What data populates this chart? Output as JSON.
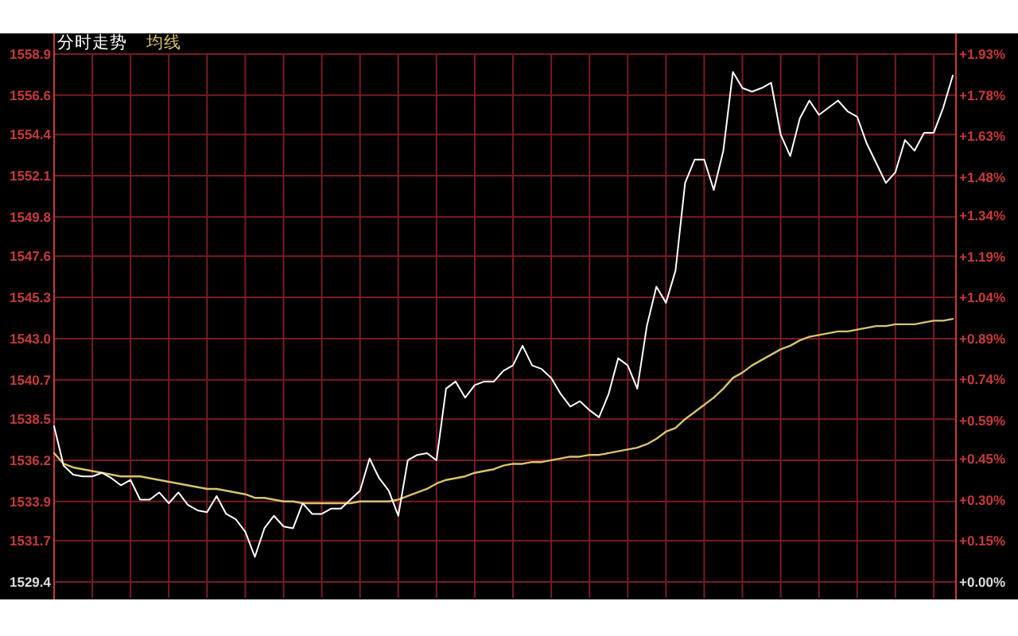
{
  "chart_data": {
    "type": "line",
    "categories": [
      null,
      null,
      null,
      null,
      null,
      null,
      null,
      null,
      null,
      null,
      null,
      null,
      null,
      null,
      null,
      null,
      null,
      null,
      null,
      null,
      null,
      null,
      null,
      null,
      null,
      null,
      null,
      null,
      null,
      null,
      null,
      null,
      null,
      null,
      null,
      null,
      null,
      null,
      null,
      null,
      null,
      null,
      null,
      null,
      null,
      null,
      null,
      null,
      null,
      null,
      null,
      null,
      null,
      null,
      null,
      null,
      null,
      null,
      null,
      null,
      null,
      null,
      null,
      null,
      null,
      null,
      null,
      null,
      null,
      null,
      null,
      null,
      null,
      null,
      null,
      null,
      null,
      null,
      null,
      null,
      null,
      null,
      null,
      null,
      null,
      null,
      null,
      null,
      null,
      null,
      null,
      null,
      null,
      null,
      null
    ],
    "series": [
      {
        "name": "分时走势",
        "color": "#ffffff",
        "values": [
          1538.1,
          1535.9,
          1535.4,
          1535.3,
          1535.3,
          1535.5,
          1535.2,
          1534.8,
          1535.1,
          1534.0,
          1534.0,
          1534.4,
          1533.8,
          1534.4,
          1533.7,
          1533.4,
          1533.3,
          1534.2,
          1533.2,
          1532.9,
          1532.2,
          1530.8,
          1532.4,
          1533.1,
          1532.5,
          1532.4,
          1533.8,
          1533.2,
          1533.2,
          1533.5,
          1533.5,
          1534.0,
          1534.5,
          1536.3,
          1535.2,
          1534.5,
          1533.1,
          1536.2,
          1536.5,
          1536.6,
          1536.2,
          1540.2,
          1540.6,
          1539.7,
          1540.4,
          1540.6,
          1540.6,
          1541.2,
          1541.5,
          1542.6,
          1541.5,
          1541.3,
          1540.8,
          1539.9,
          1539.2,
          1539.5,
          1539.0,
          1538.6,
          1539.9,
          1541.9,
          1541.5,
          1540.2,
          1543.7,
          1545.9,
          1545.0,
          1546.8,
          1551.7,
          1553.0,
          1553.0,
          1551.3,
          1553.5,
          1557.9,
          1557.0,
          1556.8,
          1557.0,
          1557.3,
          1554.4,
          1553.2,
          1555.3,
          1556.3,
          1555.5,
          1555.9,
          1556.3,
          1555.7,
          1555.4,
          1553.9,
          1552.8,
          1551.7,
          1552.3,
          1554.1,
          1553.5,
          1554.5,
          1554.5,
          1555.9,
          1557.7
        ]
      },
      {
        "name": "均线",
        "color": "#d8c46c",
        "values": [
          1536.6,
          1536.0,
          1535.8,
          1535.7,
          1535.6,
          1535.5,
          1535.4,
          1535.3,
          1535.3,
          1535.3,
          1535.2,
          1535.1,
          1535.0,
          1534.9,
          1534.8,
          1534.7,
          1534.6,
          1534.6,
          1534.5,
          1534.4,
          1534.3,
          1534.1,
          1534.1,
          1534.0,
          1533.9,
          1533.9,
          1533.8,
          1533.8,
          1533.8,
          1533.8,
          1533.8,
          1533.8,
          1533.9,
          1533.9,
          1533.9,
          1533.9,
          1534.0,
          1534.2,
          1534.4,
          1534.6,
          1534.9,
          1535.1,
          1535.2,
          1535.3,
          1535.5,
          1535.6,
          1535.7,
          1535.9,
          1536.0,
          1536.0,
          1536.1,
          1536.1,
          1536.2,
          1536.3,
          1536.4,
          1536.4,
          1536.5,
          1536.5,
          1536.6,
          1536.7,
          1536.8,
          1536.9,
          1537.1,
          1537.4,
          1537.8,
          1538.0,
          1538.5,
          1538.9,
          1539.3,
          1539.7,
          1540.2,
          1540.8,
          1541.1,
          1541.5,
          1541.8,
          1542.1,
          1542.4,
          1542.6,
          1542.9,
          1543.1,
          1543.2,
          1543.3,
          1543.4,
          1543.4,
          1543.5,
          1543.6,
          1543.7,
          1543.7,
          1543.8,
          1543.8,
          1543.8,
          1543.9,
          1544.0,
          1544.0,
          1544.1
        ]
      }
    ],
    "ylim": [
      1529.4,
      1558.9
    ],
    "yticks": [
      1529.4,
      1531.7,
      1533.9,
      1536.2,
      1538.5,
      1540.7,
      {
        "value": 1543.0,
        "label": "1543.0"
      },
      1545.3,
      1547.6,
      1549.8,
      1552.1,
      1554.4,
      1556.6,
      1558.9
    ],
    "y2lim": [
      0,
      1.93
    ],
    "y2ticks": [
      {
        "value": 0,
        "label": "+0.00%"
      },
      {
        "value": 0.15,
        "label": "+0.15%"
      },
      {
        "value": 0.3,
        "label": "+0.30%"
      },
      {
        "value": 0.45,
        "label": "+0.45%"
      },
      {
        "value": 0.59,
        "label": "+0.59%"
      },
      {
        "value": 0.74,
        "label": "+0.74%"
      },
      {
        "value": 0.89,
        "label": "+0.89%"
      },
      {
        "value": 1.04,
        "label": "+1.04%"
      },
      {
        "value": 1.19,
        "label": "+1.19%"
      },
      {
        "value": 1.34,
        "label": "+1.34%"
      },
      {
        "value": 1.48,
        "label": "+1.48%"
      },
      {
        "value": 1.63,
        "label": "+1.63%"
      },
      {
        "value": 1.78,
        "label": "+1.78%"
      },
      {
        "value": 1.93,
        "label": "+1.93%"
      }
    ],
    "grid": true,
    "legend": "top left",
    "tick_labels": "y"
  }
}
